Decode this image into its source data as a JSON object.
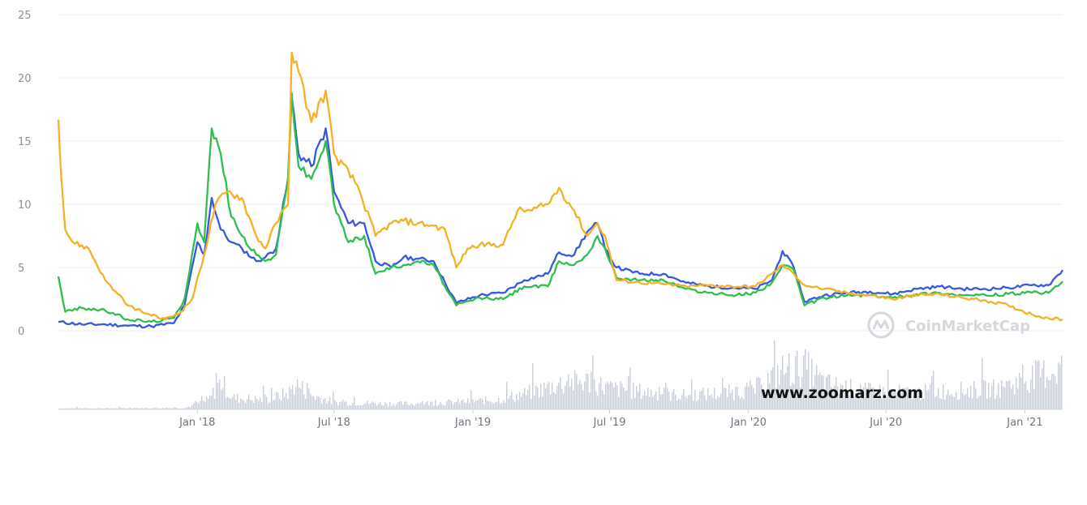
{
  "watermark": {
    "brand": "CoinMarketCap",
    "site": "www.zoomarz.com"
  },
  "chart_data": {
    "type": "line",
    "title": "",
    "xlabel": "",
    "ylabel": "",
    "ylim": [
      0,
      25
    ],
    "yticks": [
      0,
      5,
      10,
      15,
      20,
      25
    ],
    "grid": true,
    "x_range": [
      "2017-07-01",
      "2021-02-20"
    ],
    "xticks": [
      {
        "label": "Jan '18",
        "date": "2018-01-01"
      },
      {
        "label": "Jul '18",
        "date": "2018-07-01"
      },
      {
        "label": "Jan '19",
        "date": "2019-01-01"
      },
      {
        "label": "Jul '19",
        "date": "2019-07-01"
      },
      {
        "label": "Jan '20",
        "date": "2020-01-01"
      },
      {
        "label": "Jul '20",
        "date": "2020-07-01"
      },
      {
        "label": "Jan '21",
        "date": "2021-01-01"
      }
    ],
    "colors": {
      "blue": "#3558e0",
      "green": "#2fbe4f",
      "orange": "#f5b025",
      "volume": "#c9ced6",
      "grid": "#eceef1"
    },
    "series": [
      {
        "color": "#3558e0",
        "points": [
          [
            "2017-07-01",
            0.7
          ],
          [
            "2017-08-01",
            0.5
          ],
          [
            "2017-09-01",
            0.5
          ],
          [
            "2017-10-01",
            0.4
          ],
          [
            "2017-11-01",
            0.35
          ],
          [
            "2017-12-01",
            0.6
          ],
          [
            "2017-12-15",
            2.0
          ],
          [
            "2018-01-01",
            7.0
          ],
          [
            "2018-01-10",
            6.0
          ],
          [
            "2018-01-20",
            10.5
          ],
          [
            "2018-02-01",
            8.0
          ],
          [
            "2018-02-15",
            7.0
          ],
          [
            "2018-03-01",
            6.5
          ],
          [
            "2018-03-20",
            5.5
          ],
          [
            "2018-04-01",
            5.8
          ],
          [
            "2018-04-15",
            6.5
          ],
          [
            "2018-05-01",
            12.0
          ],
          [
            "2018-05-06",
            18.5
          ],
          [
            "2018-05-15",
            14.0
          ],
          [
            "2018-06-01",
            13.0
          ],
          [
            "2018-06-20",
            16.0
          ],
          [
            "2018-07-01",
            11.0
          ],
          [
            "2018-07-20",
            8.5
          ],
          [
            "2018-08-10",
            8.5
          ],
          [
            "2018-08-25",
            5.5
          ],
          [
            "2018-09-15",
            5.0
          ],
          [
            "2018-10-01",
            5.8
          ],
          [
            "2018-10-20",
            5.7
          ],
          [
            "2018-11-10",
            5.5
          ],
          [
            "2018-11-25",
            3.8
          ],
          [
            "2018-12-10",
            2.2
          ],
          [
            "2019-01-10",
            2.8
          ],
          [
            "2019-02-10",
            3.0
          ],
          [
            "2019-03-10",
            4.0
          ],
          [
            "2019-04-10",
            4.5
          ],
          [
            "2019-04-25",
            6.2
          ],
          [
            "2019-05-15",
            6.0
          ],
          [
            "2019-06-01",
            7.8
          ],
          [
            "2019-06-15",
            8.5
          ],
          [
            "2019-06-25",
            6.5
          ],
          [
            "2019-07-10",
            5.0
          ],
          [
            "2019-08-10",
            4.5
          ],
          [
            "2019-09-10",
            4.5
          ],
          [
            "2019-10-10",
            3.8
          ],
          [
            "2019-11-10",
            3.5
          ],
          [
            "2019-12-10",
            3.4
          ],
          [
            "2020-01-10",
            3.3
          ],
          [
            "2020-02-01",
            4.0
          ],
          [
            "2020-02-15",
            6.3
          ],
          [
            "2020-03-01",
            5.0
          ],
          [
            "2020-03-15",
            2.3
          ],
          [
            "2020-04-10",
            2.8
          ],
          [
            "2020-05-10",
            3.0
          ],
          [
            "2020-06-10",
            3.1
          ],
          [
            "2020-07-10",
            2.9
          ],
          [
            "2020-08-10",
            3.3
          ],
          [
            "2020-09-10",
            3.5
          ],
          [
            "2020-10-10",
            3.3
          ],
          [
            "2020-11-10",
            3.3
          ],
          [
            "2020-12-10",
            3.4
          ],
          [
            "2021-01-10",
            3.6
          ],
          [
            "2021-02-01",
            3.6
          ],
          [
            "2021-02-20",
            4.8
          ]
        ]
      },
      {
        "color": "#2fbe4f",
        "points": [
          [
            "2017-07-01",
            4.3
          ],
          [
            "2017-07-10",
            1.5
          ],
          [
            "2017-08-01",
            1.8
          ],
          [
            "2017-09-01",
            1.6
          ],
          [
            "2017-10-01",
            0.9
          ],
          [
            "2017-11-01",
            0.7
          ],
          [
            "2017-12-01",
            1.0
          ],
          [
            "2017-12-15",
            2.5
          ],
          [
            "2018-01-01",
            8.5
          ],
          [
            "2018-01-10",
            7.0
          ],
          [
            "2018-01-20",
            16.0
          ],
          [
            "2018-02-01",
            14.0
          ],
          [
            "2018-02-15",
            9.0
          ],
          [
            "2018-03-01",
            7.5
          ],
          [
            "2018-03-20",
            6.0
          ],
          [
            "2018-04-01",
            5.5
          ],
          [
            "2018-04-15",
            6.0
          ],
          [
            "2018-05-01",
            12.0
          ],
          [
            "2018-05-06",
            18.8
          ],
          [
            "2018-05-15",
            13.0
          ],
          [
            "2018-06-01",
            12.0
          ],
          [
            "2018-06-20",
            15.0
          ],
          [
            "2018-07-01",
            10.0
          ],
          [
            "2018-07-20",
            7.0
          ],
          [
            "2018-08-10",
            7.5
          ],
          [
            "2018-08-25",
            4.5
          ],
          [
            "2018-09-15",
            5.0
          ],
          [
            "2018-10-01",
            5.2
          ],
          [
            "2018-10-20",
            5.5
          ],
          [
            "2018-11-10",
            5.2
          ],
          [
            "2018-11-25",
            3.5
          ],
          [
            "2018-12-10",
            2.0
          ],
          [
            "2019-01-10",
            2.6
          ],
          [
            "2019-02-10",
            2.5
          ],
          [
            "2019-03-10",
            3.5
          ],
          [
            "2019-04-10",
            3.5
          ],
          [
            "2019-04-25",
            5.5
          ],
          [
            "2019-05-15",
            5.2
          ],
          [
            "2019-06-01",
            6.0
          ],
          [
            "2019-06-15",
            7.5
          ],
          [
            "2019-06-25",
            6.5
          ],
          [
            "2019-07-10",
            4.2
          ],
          [
            "2019-08-10",
            4.0
          ],
          [
            "2019-09-10",
            4.0
          ],
          [
            "2019-10-10",
            3.3
          ],
          [
            "2019-11-10",
            3.0
          ],
          [
            "2019-12-10",
            2.8
          ],
          [
            "2020-01-10",
            3.0
          ],
          [
            "2020-02-01",
            3.8
          ],
          [
            "2020-02-15",
            5.2
          ],
          [
            "2020-03-01",
            4.8
          ],
          [
            "2020-03-15",
            2.0
          ],
          [
            "2020-04-10",
            2.6
          ],
          [
            "2020-05-10",
            2.8
          ],
          [
            "2020-06-10",
            2.8
          ],
          [
            "2020-07-10",
            2.6
          ],
          [
            "2020-08-10",
            2.9
          ],
          [
            "2020-09-10",
            3.0
          ],
          [
            "2020-10-10",
            2.8
          ],
          [
            "2020-11-10",
            2.8
          ],
          [
            "2020-12-10",
            2.9
          ],
          [
            "2021-01-10",
            3.0
          ],
          [
            "2021-02-01",
            3.0
          ],
          [
            "2021-02-20",
            3.9
          ]
        ]
      },
      {
        "color": "#f5b025",
        "points": [
          [
            "2017-07-01",
            16.7
          ],
          [
            "2017-07-05",
            12.0
          ],
          [
            "2017-07-10",
            8.0
          ],
          [
            "2017-07-20",
            7.0
          ],
          [
            "2017-08-10",
            6.5
          ],
          [
            "2017-09-01",
            4.0
          ],
          [
            "2017-10-01",
            2.0
          ],
          [
            "2017-11-01",
            1.2
          ],
          [
            "2017-11-20",
            0.9
          ],
          [
            "2017-12-10",
            1.5
          ],
          [
            "2017-12-25",
            2.5
          ],
          [
            "2018-01-10",
            6.0
          ],
          [
            "2018-01-25",
            10.0
          ],
          [
            "2018-02-10",
            11.0
          ],
          [
            "2018-03-01",
            10.5
          ],
          [
            "2018-03-20",
            7.5
          ],
          [
            "2018-04-01",
            6.5
          ],
          [
            "2018-04-15",
            8.5
          ],
          [
            "2018-05-01",
            10.0
          ],
          [
            "2018-05-06",
            22.0
          ],
          [
            "2018-05-15",
            20.5
          ],
          [
            "2018-06-01",
            16.5
          ],
          [
            "2018-06-20",
            19.0
          ],
          [
            "2018-07-01",
            14.0
          ],
          [
            "2018-08-01",
            11.5
          ],
          [
            "2018-08-25",
            7.5
          ],
          [
            "2018-09-15",
            8.5
          ],
          [
            "2018-10-01",
            8.7
          ],
          [
            "2018-10-20",
            8.5
          ],
          [
            "2018-11-10",
            8.3
          ],
          [
            "2018-11-25",
            8.0
          ],
          [
            "2018-12-10",
            5.0
          ],
          [
            "2018-12-25",
            6.5
          ],
          [
            "2019-01-10",
            6.8
          ],
          [
            "2019-02-10",
            6.8
          ],
          [
            "2019-03-01",
            9.5
          ],
          [
            "2019-03-20",
            9.5
          ],
          [
            "2019-04-10",
            10.0
          ],
          [
            "2019-04-25",
            11.3
          ],
          [
            "2019-05-15",
            9.5
          ],
          [
            "2019-06-01",
            7.5
          ],
          [
            "2019-06-15",
            8.5
          ],
          [
            "2019-06-25",
            7.5
          ],
          [
            "2019-07-10",
            4.0
          ],
          [
            "2019-08-10",
            3.8
          ],
          [
            "2019-09-10",
            3.7
          ],
          [
            "2019-10-10",
            3.5
          ],
          [
            "2019-11-10",
            3.6
          ],
          [
            "2019-12-10",
            3.5
          ],
          [
            "2020-01-10",
            3.5
          ],
          [
            "2020-02-01",
            4.5
          ],
          [
            "2020-02-15",
            5.2
          ],
          [
            "2020-03-01",
            4.5
          ],
          [
            "2020-03-15",
            3.6
          ],
          [
            "2020-04-10",
            3.3
          ],
          [
            "2020-05-10",
            3.0
          ],
          [
            "2020-06-10",
            2.8
          ],
          [
            "2020-07-10",
            2.5
          ],
          [
            "2020-08-10",
            2.8
          ],
          [
            "2020-09-10",
            2.9
          ],
          [
            "2020-10-10",
            2.6
          ],
          [
            "2020-11-10",
            2.4
          ],
          [
            "2020-12-10",
            2.0
          ],
          [
            "2021-01-10",
            1.3
          ],
          [
            "2021-02-01",
            1.0
          ],
          [
            "2021-02-20",
            0.9
          ]
        ]
      }
    ],
    "volume": {
      "note_levels": [
        [
          "2017-07-01",
          0.02
        ],
        [
          "2017-12-15",
          0.03
        ],
        [
          "2018-01-15",
          0.2
        ],
        [
          "2018-02-01",
          0.6
        ],
        [
          "2018-02-15",
          0.25
        ],
        [
          "2018-04-01",
          0.2
        ],
        [
          "2018-05-01",
          0.35
        ],
        [
          "2018-05-10",
          0.55
        ],
        [
          "2018-06-01",
          0.3
        ],
        [
          "2018-07-01",
          0.15
        ],
        [
          "2018-10-01",
          0.12
        ],
        [
          "2018-12-01",
          0.15
        ],
        [
          "2019-02-01",
          0.2
        ],
        [
          "2019-03-15",
          0.35
        ],
        [
          "2019-04-25",
          0.55
        ],
        [
          "2019-06-01",
          0.6
        ],
        [
          "2019-07-01",
          0.45
        ],
        [
          "2019-10-01",
          0.3
        ],
        [
          "2019-12-01",
          0.35
        ],
        [
          "2020-01-10",
          0.45
        ],
        [
          "2020-02-15",
          0.85
        ],
        [
          "2020-03-15",
          0.9
        ],
        [
          "2020-04-10",
          0.55
        ],
        [
          "2020-06-01",
          0.4
        ],
        [
          "2020-08-01",
          0.35
        ],
        [
          "2020-10-01",
          0.4
        ],
        [
          "2020-12-01",
          0.45
        ],
        [
          "2021-01-10",
          0.7
        ],
        [
          "2021-02-20",
          0.9
        ]
      ]
    }
  }
}
